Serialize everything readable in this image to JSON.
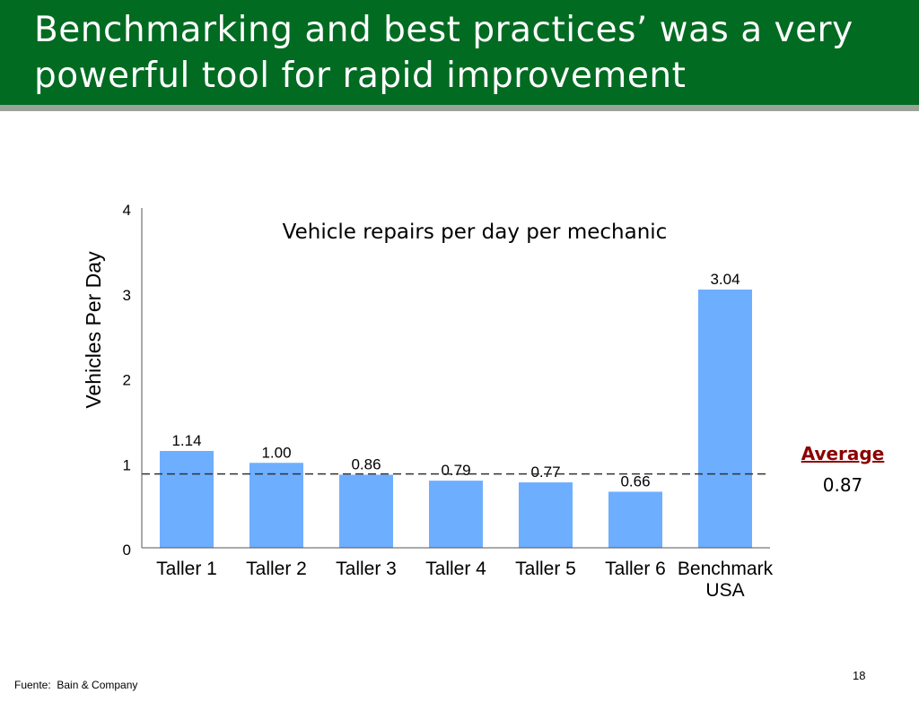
{
  "slide": {
    "title": "Benchmarking and best practices’ was a very powerful tool for rapid improvement",
    "source": "Fuente:  Bain & Company",
    "page_number": "18",
    "colors": {
      "title_bar": "#006b21",
      "title_rule": "#9aa39a",
      "bar": "#6eaeff",
      "average_label": "#8b0000"
    }
  },
  "average": {
    "label": "Average",
    "value_text": "0.87",
    "value": 0.87
  },
  "chart_data": {
    "type": "bar",
    "title": "Vehicle repairs per day per mechanic",
    "xlabel": "",
    "ylabel": "Vehicles Per Day",
    "categories": [
      "Taller 1",
      "Taller 2",
      "Taller 3",
      "Taller 4",
      "Taller 5",
      "Taller 6",
      "Benchmark USA"
    ],
    "category_lines": [
      [
        "Taller 1"
      ],
      [
        "Taller 2"
      ],
      [
        "Taller 3"
      ],
      [
        "Taller 4"
      ],
      [
        "Taller 5"
      ],
      [
        "Taller 6"
      ],
      [
        "Benchmark",
        "USA"
      ]
    ],
    "values": [
      1.14,
      1.0,
      0.86,
      0.79,
      0.77,
      0.66,
      3.04
    ],
    "value_labels": [
      "1.14",
      "1.00",
      "0.86",
      "0.79",
      "0.77",
      "0.66",
      "3.04"
    ],
    "ylim": [
      0,
      4
    ],
    "yticks": [
      "0",
      "1",
      "2",
      "3",
      "4"
    ],
    "reference_line": 0.87,
    "grid": false,
    "legend": "none"
  }
}
